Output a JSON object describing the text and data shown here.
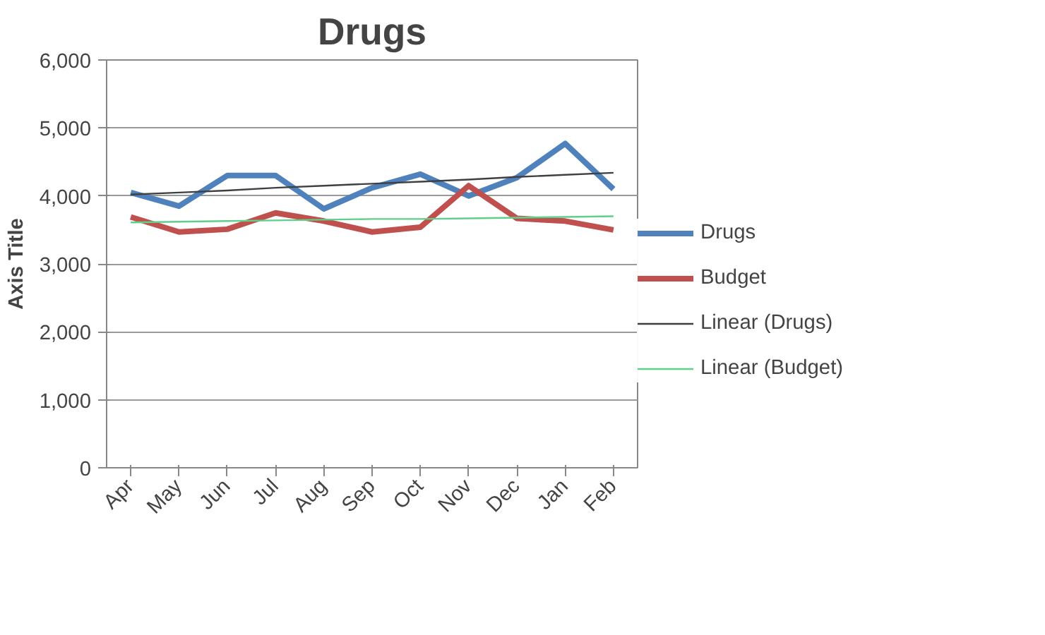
{
  "chart_data": {
    "type": "line",
    "title": "Drugs",
    "ylabel": "Axis Title",
    "categories": [
      "Apr",
      "May",
      "Jun",
      "Jul",
      "Aug",
      "Sep",
      "Oct",
      "Nov",
      "Dec",
      "Jan",
      "Feb"
    ],
    "series": [
      {
        "name": "Drugs",
        "color": "#4f81bd",
        "values": [
          4050,
          3850,
          4300,
          4300,
          3810,
          4120,
          4320,
          4000,
          4270,
          4770,
          4100
        ]
      },
      {
        "name": "Budget",
        "color": "#c0504d",
        "values": [
          3690,
          3470,
          3510,
          3750,
          3630,
          3470,
          3540,
          4150,
          3670,
          3630,
          3500
        ]
      },
      {
        "name": "Linear (Drugs)",
        "color": "#404040",
        "values": [
          4020,
          4050,
          4080,
          4120,
          4150,
          4180,
          4210,
          4240,
          4280,
          4310,
          4340
        ]
      },
      {
        "name": "Linear (Budget)",
        "color": "#5fd08a",
        "values": [
          3610,
          3620,
          3630,
          3640,
          3650,
          3660,
          3660,
          3670,
          3680,
          3690,
          3700
        ]
      }
    ],
    "ylim": [
      0,
      6000
    ],
    "yticks": [
      0,
      {
        "value": 1000,
        "label": "1,000"
      },
      {
        "value": 2000,
        "label": "2,000"
      },
      {
        "value": 3000,
        "label": "3,000"
      },
      {
        "value": 4000,
        "label": "4,000"
      },
      {
        "value": 5000,
        "label": "5,000"
      },
      {
        "value": 6000,
        "label": "6,000"
      }
    ],
    "grid": "y",
    "legend": "right",
    "marker": "none",
    "line_style": "solid"
  }
}
